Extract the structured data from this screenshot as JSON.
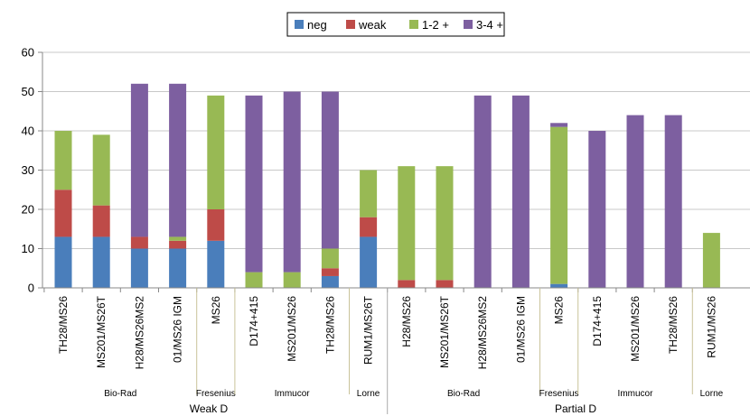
{
  "chart_data": {
    "type": "bar",
    "stacked": true,
    "title": "",
    "xlabel": "",
    "ylabel": "",
    "ylim": [
      0,
      60
    ],
    "yticks": [
      0,
      10,
      20,
      30,
      40,
      50,
      60
    ],
    "grid": true,
    "legend_position": "top-center",
    "categories": [
      "TH28/MS26",
      "MS201/MS26T",
      "H28/MS26MS2",
      "01/MS26 IGM",
      "MS26",
      "D174+415",
      "MS201/MS26",
      "TH28/MS26",
      "RUM1/MS26T",
      "H28/MS26",
      "MS201/MS26T",
      "H28/MS26MS2",
      "01/MS26 IGM",
      "MS26",
      "D174+415",
      "MS201/MS26",
      "TH28/MS26",
      "RUM1/MS26"
    ],
    "series": [
      {
        "name": "neg",
        "color": "#4a7ebb",
        "values": [
          13,
          13,
          10,
          10,
          12,
          0,
          0,
          3,
          13,
          0,
          0,
          0,
          0,
          1,
          0,
          0,
          0,
          0
        ]
      },
      {
        "name": "weak",
        "color": "#be4b48",
        "values": [
          12,
          8,
          3,
          2,
          8,
          0,
          0,
          2,
          5,
          2,
          2,
          0,
          0,
          0,
          0,
          0,
          0,
          0
        ]
      },
      {
        "name": "1-2 +",
        "color": "#98b954",
        "values": [
          15,
          18,
          0,
          1,
          29,
          4,
          4,
          5,
          12,
          29,
          29,
          0,
          0,
          40,
          0,
          0,
          0,
          14
        ]
      },
      {
        "name": "3-4 +",
        "color": "#7d5fa0",
        "values": [
          0,
          0,
          39,
          39,
          0,
          45,
          46,
          40,
          0,
          0,
          0,
          49,
          49,
          1,
          40,
          44,
          44,
          0
        ]
      }
    ],
    "groups": [
      {
        "label": "Bio-Rad",
        "start": 0,
        "end": 3
      },
      {
        "label": "Fresenius",
        "start": 4,
        "end": 4
      },
      {
        "label": "Immucor",
        "start": 5,
        "end": 7
      },
      {
        "label": "Lorne",
        "start": 8,
        "end": 8
      },
      {
        "label": "Bio-Rad",
        "start": 9,
        "end": 12
      },
      {
        "label": "Fresenius",
        "start": 13,
        "end": 13
      },
      {
        "label": "Immucor",
        "start": 14,
        "end": 16
      },
      {
        "label": "Lorne",
        "start": 17,
        "end": 17
      }
    ],
    "super_groups": [
      {
        "label": "Weak D",
        "start": 0,
        "end": 8
      },
      {
        "label": "Partial D",
        "start": 9,
        "end": 17
      }
    ]
  }
}
